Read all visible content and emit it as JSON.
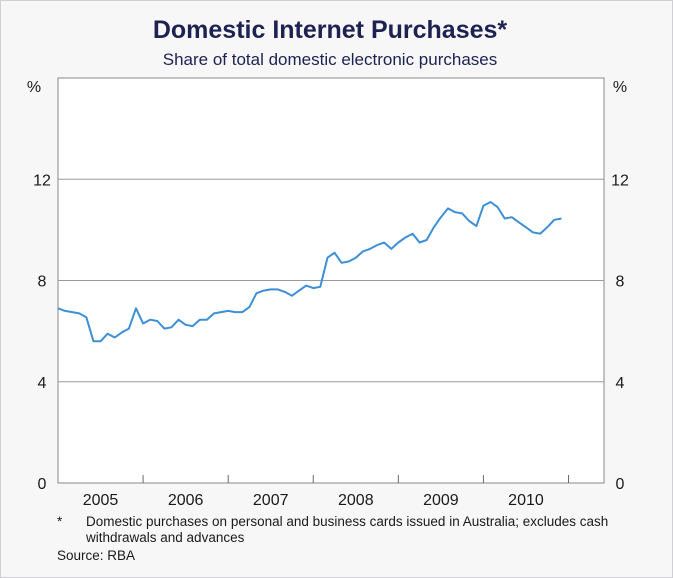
{
  "chart_data": {
    "type": "line",
    "title": "Domestic Internet Purchases*",
    "subtitle": "Share of total domestic electronic purchases",
    "ylabel_left": "%",
    "ylabel_right": "%",
    "ylim": [
      0,
      16
    ],
    "y_ticks": [
      0,
      4,
      8,
      12
    ],
    "y_tick_labels": [
      "0",
      "4",
      "8",
      "12"
    ],
    "grid": true,
    "x_range": [
      2004.5,
      2010.917
    ],
    "x_tick_labels": [
      "2005",
      "2006",
      "2007",
      "2008",
      "2009",
      "2010"
    ],
    "x_label_positions": [
      2005,
      2006,
      2007,
      2008,
      2009,
      2010
    ],
    "x_year_dividers": [
      2005.5,
      2006.5,
      2007.5,
      2008.5,
      2009.5,
      2010.5
    ],
    "series": [
      {
        "name": "Domestic Internet Purchases",
        "color": "#3d8fd6",
        "x": [
          2004.5,
          2004.583,
          2004.667,
          2004.75,
          2004.833,
          2004.917,
          2005.0,
          2005.083,
          2005.167,
          2005.25,
          2005.333,
          2005.417,
          2005.5,
          2005.583,
          2005.667,
          2005.75,
          2005.833,
          2005.917,
          2006.0,
          2006.083,
          2006.167,
          2006.25,
          2006.333,
          2006.417,
          2006.5,
          2006.583,
          2006.667,
          2006.75,
          2006.833,
          2006.917,
          2007.0,
          2007.083,
          2007.167,
          2007.25,
          2007.333,
          2007.417,
          2007.5,
          2007.583,
          2007.667,
          2007.75,
          2007.833,
          2007.917,
          2008.0,
          2008.083,
          2008.167,
          2008.25,
          2008.333,
          2008.417,
          2008.5,
          2008.583,
          2008.667,
          2008.75,
          2008.833,
          2008.917,
          2009.0,
          2009.083,
          2009.167,
          2009.25,
          2009.333,
          2009.417,
          2009.5,
          2009.583,
          2009.667,
          2009.75,
          2009.833,
          2009.917,
          2010.0,
          2010.083,
          2010.167,
          2010.25,
          2010.333,
          2010.417
        ],
        "values": [
          6.9,
          6.8,
          6.75,
          6.7,
          6.55,
          5.6,
          5.6,
          5.9,
          5.75,
          5.95,
          6.1,
          6.9,
          6.3,
          6.45,
          6.4,
          6.1,
          6.15,
          6.45,
          6.25,
          6.2,
          6.45,
          6.45,
          6.7,
          6.75,
          6.8,
          6.75,
          6.75,
          6.95,
          7.5,
          7.6,
          7.65,
          7.65,
          7.55,
          7.4,
          7.6,
          7.8,
          7.7,
          7.75,
          8.9,
          9.1,
          8.7,
          8.75,
          8.9,
          9.15,
          9.25,
          9.4,
          9.5,
          9.25,
          9.5,
          9.7,
          9.85,
          9.5,
          9.6,
          10.1,
          10.5,
          10.85,
          10.7,
          10.65,
          10.35,
          10.15,
          10.95,
          11.1,
          10.9,
          10.45,
          10.5,
          10.3,
          10.1,
          9.9,
          9.85,
          10.1,
          10.4,
          10.45
        ]
      }
    ],
    "footnote_marker": "*",
    "footnote_text": "Domestic purchases on personal and business cards issued in Australia; excludes cash withdrawals and advances",
    "source": "Source: RBA"
  }
}
